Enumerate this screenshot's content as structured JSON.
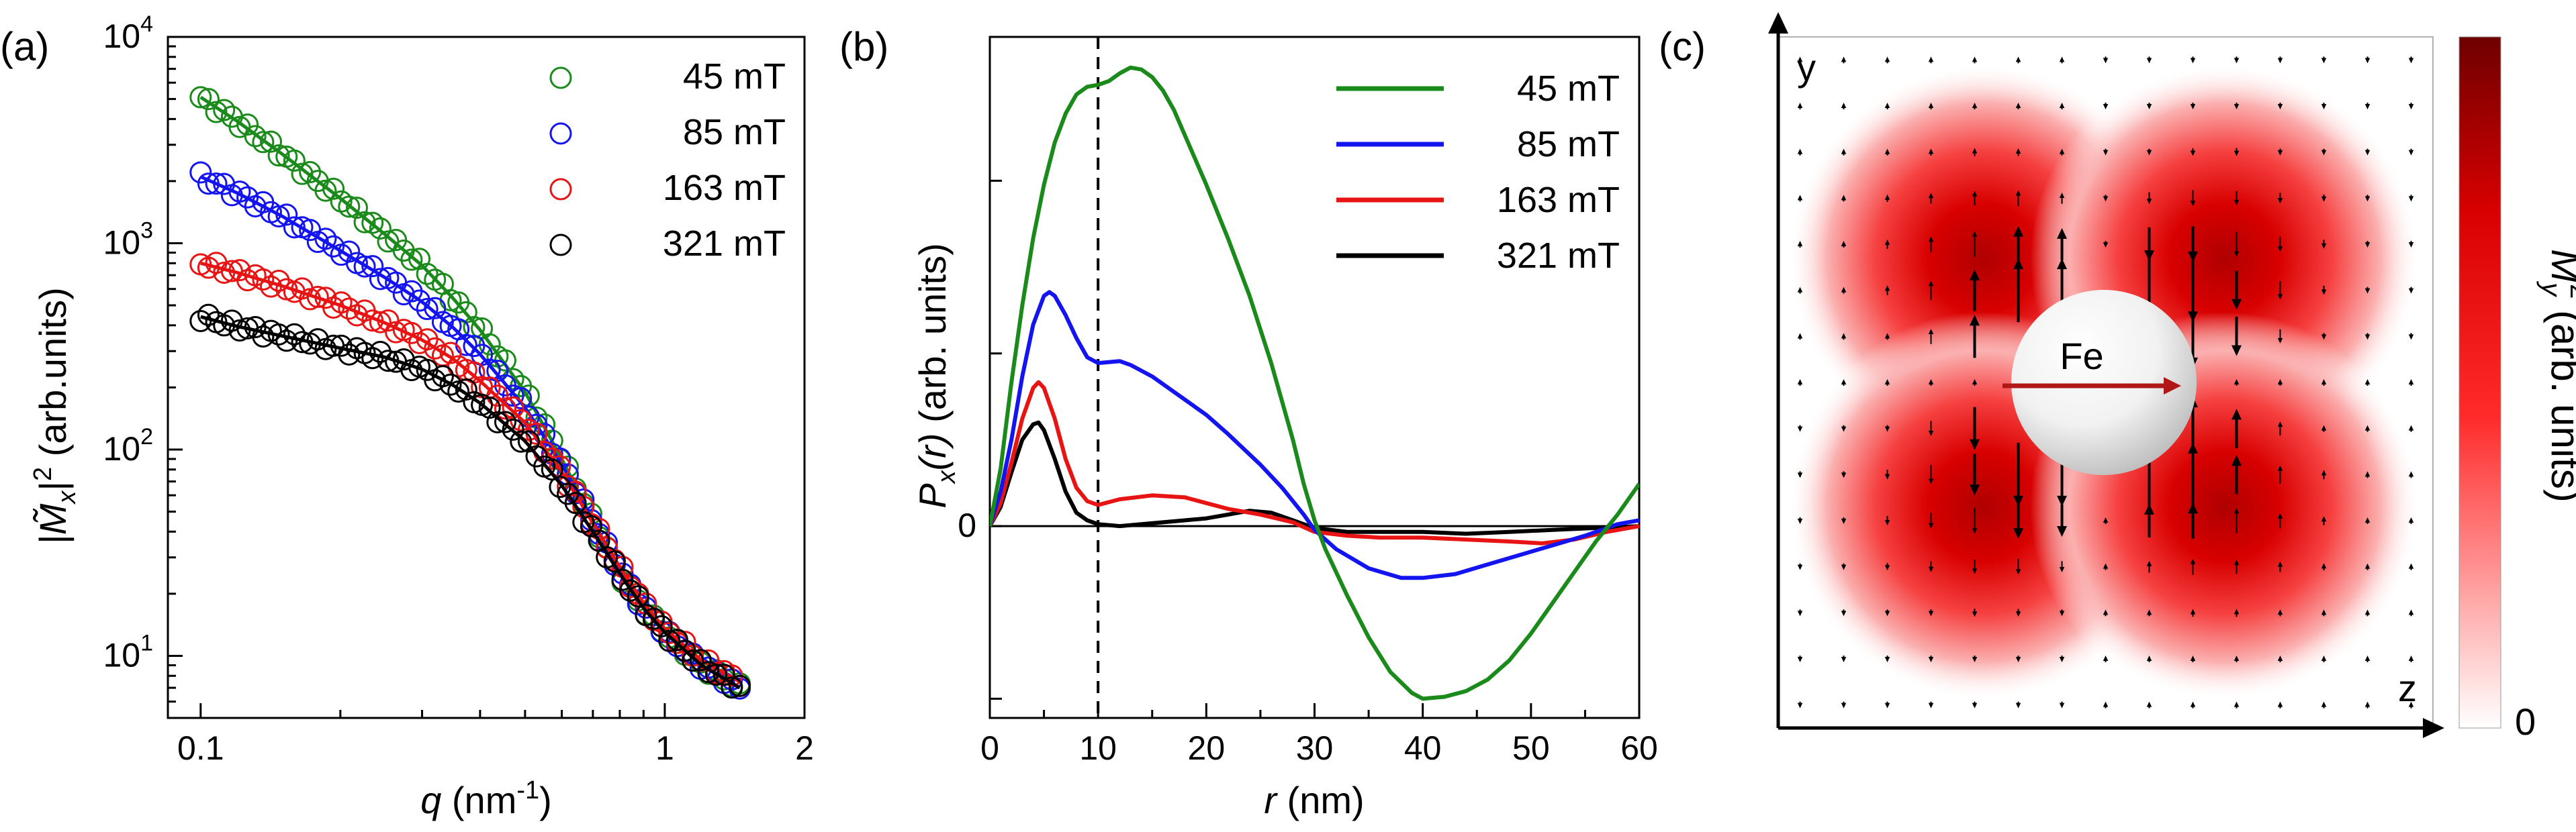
{
  "colors": {
    "green": "#1a8a1a",
    "blue": "#1414f0",
    "red": "#e81414",
    "black": "#000000",
    "dark_red": "#7a0000",
    "arrow_red": "#b01818"
  },
  "chart_data": [
    {
      "panel": "(a)",
      "type": "scatter",
      "xscale": "log",
      "yscale": "log",
      "xlim": [
        0.085,
        2
      ],
      "ylim": [
        5,
        10000
      ],
      "xlabel_pre": "q",
      "xlabel_mid": " (nm",
      "xlabel_sup": "-1",
      "xlabel_post": ")",
      "ylabel_main": "|M̃",
      "ylabel_sub": "x",
      "ylabel_bar": "|",
      "ylabel_sup": "2",
      "ylabel_post": " (arb.units)",
      "xticks": [
        {
          "v": 0.1,
          "label": "0.1"
        },
        {
          "v": 1,
          "label": "1"
        },
        {
          "v": 2,
          "label": "2"
        }
      ],
      "yticks": [
        {
          "v": 10,
          "base": "10",
          "exp": "1"
        },
        {
          "v": 100,
          "base": "10",
          "exp": "2"
        },
        {
          "v": 1000,
          "base": "10",
          "exp": "3"
        },
        {
          "v": 10000,
          "base": "10",
          "exp": "4"
        }
      ],
      "legend_position": "top-right",
      "q_range": [
        0.1,
        1.45
      ],
      "series": [
        {
          "name": "45 mT",
          "color": "#1a8a1a",
          "fit": [
            [
              0.1,
              5100
            ],
            [
              0.12,
              3900
            ],
            [
              0.15,
              2700
            ],
            [
              0.2,
              1650
            ],
            [
              0.25,
              1100
            ],
            [
              0.3,
              780
            ],
            [
              0.35,
              540
            ],
            [
              0.4,
              380
            ],
            [
              0.5,
              190
            ],
            [
              0.6,
              90
            ],
            [
              0.7,
              45
            ],
            [
              0.8,
              25
            ],
            [
              0.9,
              17
            ],
            [
              1.0,
              13
            ],
            [
              1.2,
              9
            ],
            [
              1.45,
              7
            ]
          ]
        },
        {
          "name": "85 mT",
          "color": "#1414f0",
          "fit": [
            [
              0.1,
              2100
            ],
            [
              0.12,
              1750
            ],
            [
              0.15,
              1350
            ],
            [
              0.2,
              920
            ],
            [
              0.25,
              680
            ],
            [
              0.3,
              520
            ],
            [
              0.35,
              390
            ],
            [
              0.4,
              290
            ],
            [
              0.5,
              160
            ],
            [
              0.6,
              85
            ],
            [
              0.7,
              45
            ],
            [
              0.8,
              26
            ],
            [
              0.9,
              17
            ],
            [
              1.0,
              13
            ],
            [
              1.2,
              9
            ],
            [
              1.45,
              7
            ]
          ]
        },
        {
          "name": "163 mT",
          "color": "#e81414",
          "fit": [
            [
              0.1,
              800
            ],
            [
              0.12,
              720
            ],
            [
              0.15,
              620
            ],
            [
              0.2,
              500
            ],
            [
              0.25,
              410
            ],
            [
              0.3,
              340
            ],
            [
              0.35,
              275
            ],
            [
              0.4,
              215
            ],
            [
              0.5,
              135
            ],
            [
              0.6,
              78
            ],
            [
              0.7,
              44
            ],
            [
              0.8,
              27
            ],
            [
              0.9,
              18
            ],
            [
              1.0,
              13.5
            ],
            [
              1.2,
              9.5
            ],
            [
              1.45,
              7.5
            ]
          ]
        },
        {
          "name": "321 mT",
          "color": "#000000",
          "fit": [
            [
              0.1,
              440
            ],
            [
              0.12,
              395
            ],
            [
              0.15,
              355
            ],
            [
              0.2,
              310
            ],
            [
              0.25,
              280
            ],
            [
              0.3,
              245
            ],
            [
              0.35,
              205
            ],
            [
              0.4,
              168
            ],
            [
              0.5,
              110
            ],
            [
              0.6,
              67
            ],
            [
              0.7,
              40
            ],
            [
              0.8,
              25
            ],
            [
              0.9,
              17
            ],
            [
              1.0,
              13
            ],
            [
              1.2,
              9
            ],
            [
              1.45,
              7
            ]
          ]
        }
      ]
    },
    {
      "panel": "(b)",
      "type": "line",
      "xlim": [
        0,
        60
      ],
      "ylim": [
        -1.0,
        2.55
      ],
      "xlabel_pre": "r",
      "xlabel_post": " (nm)",
      "ylabel_main": "P",
      "ylabel_sub": "x",
      "ylabel_arg": "(r)",
      "ylabel_post": " (arb. units)",
      "xticks": [
        0,
        10,
        20,
        30,
        40,
        50,
        60
      ],
      "ytick_label": "0",
      "dashed_line_x": 10,
      "legend_position": "top-right",
      "series": [
        {
          "name": "45 mT",
          "color": "#1a8a1a",
          "points": [
            [
              0,
              0
            ],
            [
              1,
              0.3
            ],
            [
              2,
              0.75
            ],
            [
              3,
              1.15
            ],
            [
              4,
              1.5
            ],
            [
              5,
              1.78
            ],
            [
              6,
              2.0
            ],
            [
              7,
              2.15
            ],
            [
              8,
              2.25
            ],
            [
              9,
              2.29
            ],
            [
              10,
              2.3
            ],
            [
              11,
              2.32
            ],
            [
              12,
              2.36
            ],
            [
              13,
              2.39
            ],
            [
              14,
              2.38
            ],
            [
              15,
              2.34
            ],
            [
              16,
              2.27
            ],
            [
              17,
              2.17
            ],
            [
              18,
              2.04
            ],
            [
              20,
              1.78
            ],
            [
              22,
              1.5
            ],
            [
              24,
              1.2
            ],
            [
              26,
              0.85
            ],
            [
              28,
              0.45
            ],
            [
              29,
              0.22
            ],
            [
              30,
              0.03
            ],
            [
              31,
              -0.12
            ],
            [
              33,
              -0.36
            ],
            [
              35,
              -0.58
            ],
            [
              37,
              -0.76
            ],
            [
              39,
              -0.87
            ],
            [
              40,
              -0.9
            ],
            [
              42,
              -0.89
            ],
            [
              44,
              -0.86
            ],
            [
              46,
              -0.8
            ],
            [
              48,
              -0.7
            ],
            [
              50,
              -0.56
            ],
            [
              52,
              -0.4
            ],
            [
              54,
              -0.24
            ],
            [
              56,
              -0.08
            ],
            [
              58,
              0.06
            ],
            [
              60,
              0.22
            ]
          ]
        },
        {
          "name": "85 mT",
          "color": "#1414f0",
          "points": [
            [
              0,
              0
            ],
            [
              1,
              0.18
            ],
            [
              2,
              0.45
            ],
            [
              3,
              0.78
            ],
            [
              4,
              1.05
            ],
            [
              5,
              1.2
            ],
            [
              5.5,
              1.22
            ],
            [
              6,
              1.2
            ],
            [
              7,
              1.1
            ],
            [
              8,
              0.98
            ],
            [
              9,
              0.88
            ],
            [
              10,
              0.85
            ],
            [
              12,
              0.86
            ],
            [
              13,
              0.84
            ],
            [
              15,
              0.78
            ],
            [
              17,
              0.7
            ],
            [
              20,
              0.58
            ],
            [
              22,
              0.48
            ],
            [
              25,
              0.32
            ],
            [
              27,
              0.2
            ],
            [
              29,
              0.06
            ],
            [
              30,
              -0.02
            ],
            [
              32,
              -0.12
            ],
            [
              35,
              -0.22
            ],
            [
              38,
              -0.27
            ],
            [
              40,
              -0.27
            ],
            [
              43,
              -0.25
            ],
            [
              46,
              -0.2
            ],
            [
              49,
              -0.15
            ],
            [
              52,
              -0.1
            ],
            [
              55,
              -0.05
            ],
            [
              58,
              0.01
            ],
            [
              60,
              0.03
            ]
          ]
        },
        {
          "name": "163 mT",
          "color": "#e81414",
          "points": [
            [
              0,
              0
            ],
            [
              1,
              0.12
            ],
            [
              2,
              0.33
            ],
            [
              3,
              0.56
            ],
            [
              4,
              0.72
            ],
            [
              4.5,
              0.75
            ],
            [
              5,
              0.72
            ],
            [
              6,
              0.56
            ],
            [
              7,
              0.35
            ],
            [
              8,
              0.2
            ],
            [
              9,
              0.13
            ],
            [
              10,
              0.11
            ],
            [
              12,
              0.14
            ],
            [
              15,
              0.16
            ],
            [
              18,
              0.15
            ],
            [
              20,
              0.12
            ],
            [
              22,
              0.09
            ],
            [
              25,
              0.06
            ],
            [
              28,
              0.02
            ],
            [
              30,
              -0.03
            ],
            [
              33,
              -0.05
            ],
            [
              36,
              -0.06
            ],
            [
              40,
              -0.06
            ],
            [
              44,
              -0.07
            ],
            [
              48,
              -0.08
            ],
            [
              51,
              -0.09
            ],
            [
              54,
              -0.07
            ],
            [
              57,
              -0.03
            ],
            [
              60,
              0.0
            ]
          ]
        },
        {
          "name": "321 mT",
          "color": "#000000",
          "points": [
            [
              0,
              0
            ],
            [
              1,
              0.1
            ],
            [
              2,
              0.28
            ],
            [
              3,
              0.45
            ],
            [
              4,
              0.53
            ],
            [
              4.5,
              0.54
            ],
            [
              5,
              0.5
            ],
            [
              6,
              0.35
            ],
            [
              7,
              0.18
            ],
            [
              8,
              0.07
            ],
            [
              9,
              0.03
            ],
            [
              10,
              0.01
            ],
            [
              12,
              0.0
            ],
            [
              14,
              0.01
            ],
            [
              16,
              0.02
            ],
            [
              18,
              0.03
            ],
            [
              20,
              0.04
            ],
            [
              22,
              0.06
            ],
            [
              24,
              0.08
            ],
            [
              26,
              0.07
            ],
            [
              28,
              0.03
            ],
            [
              30,
              -0.01
            ],
            [
              33,
              -0.03
            ],
            [
              36,
              -0.03
            ],
            [
              40,
              -0.03
            ],
            [
              44,
              -0.04
            ],
            [
              48,
              -0.03
            ],
            [
              52,
              -0.02
            ],
            [
              56,
              -0.01
            ],
            [
              60,
              0.0
            ]
          ]
        }
      ]
    },
    {
      "panel": "(c)",
      "type": "heatmap",
      "x_axis_label": "z",
      "y_axis_label": "y",
      "particle_label": "Fe",
      "colorbar_label_main": "M",
      "colorbar_label_sub": "y",
      "colorbar_label_sup": "2",
      "colorbar_label_post": " (arb. units)",
      "colorbar_min_label": "0",
      "grid_size": 15
    }
  ]
}
